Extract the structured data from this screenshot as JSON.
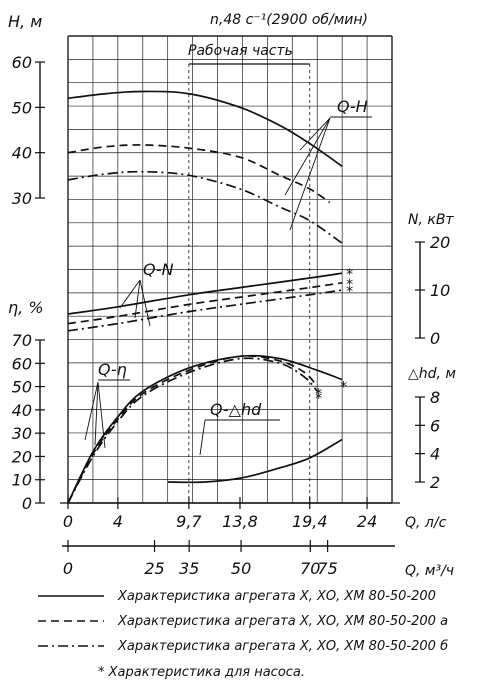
{
  "chart_data": {
    "type": "line",
    "title": "n,48 c⁻¹(2900 об/мин)",
    "working_range_label": "Рабочая часть",
    "x_axis": {
      "label": "Q, л/с",
      "ticks": [
        "0",
        "4",
        "9,7",
        "13,8",
        "19,4",
        "24"
      ],
      "tick_values": [
        0,
        4,
        9.7,
        13.8,
        19.4,
        24
      ],
      "range": [
        0,
        26
      ]
    },
    "x2_axis": {
      "label": "Q, м³/ч",
      "ticks": [
        "0",
        "25",
        "35",
        "50",
        "70",
        "75"
      ],
      "tick_values": [
        0,
        25,
        35,
        50,
        70,
        75
      ]
    },
    "panels": {
      "head": {
        "axis_label": "H, м",
        "ticks": [
          "60",
          "50",
          "40",
          "30"
        ],
        "tick_values": [
          60,
          50,
          40,
          30
        ],
        "curve_label": "Q-H"
      },
      "power": {
        "axis_label": "N, кВт",
        "ticks": [
          "20",
          "10",
          "0"
        ],
        "tick_values": [
          20,
          10,
          0
        ],
        "curve_label": "Q-N"
      },
      "efficiency": {
        "axis_label": "η, %",
        "ticks": [
          "70",
          "60",
          "50",
          "40",
          "30",
          "20",
          "10",
          "0"
        ],
        "tick_values": [
          70,
          60,
          50,
          40,
          30,
          20,
          10,
          0
        ],
        "curve_label": "Q-η"
      },
      "npsh": {
        "axis_label": "△hd, м",
        "ticks": [
          "8",
          "6",
          "4",
          "2"
        ],
        "tick_values": [
          8,
          6,
          4,
          2
        ],
        "curve_label": "Q-△hd"
      }
    },
    "series": [
      {
        "name": "Характеристика агрегата Х, ХО, ХМ 80-50-200",
        "style": "solid",
        "head": [
          [
            0,
            52
          ],
          [
            3,
            53
          ],
          [
            6,
            53.5
          ],
          [
            9.7,
            53
          ],
          [
            13.8,
            50
          ],
          [
            17,
            46
          ],
          [
            19.4,
            42
          ],
          [
            22,
            37
          ]
        ],
        "power": [
          [
            0,
            5
          ],
          [
            4,
            6.5
          ],
          [
            9.7,
            9
          ],
          [
            13.8,
            10.5
          ],
          [
            19.4,
            12.5
          ],
          [
            22,
            13.5
          ]
        ],
        "efficiency": [
          [
            0,
            0
          ],
          [
            2,
            22
          ],
          [
            4,
            37
          ],
          [
            6,
            48
          ],
          [
            9.7,
            58
          ],
          [
            13.8,
            63
          ],
          [
            17,
            62
          ],
          [
            20,
            57
          ],
          [
            22,
            53
          ]
        ]
      },
      {
        "name": "Характеристика агрегата Х, ХО, ХМ 80-50-200 а",
        "style": "dashed",
        "head": [
          [
            0,
            40
          ],
          [
            3,
            41.3
          ],
          [
            6,
            41.7
          ],
          [
            9.7,
            41
          ],
          [
            13.8,
            39
          ],
          [
            17,
            35
          ],
          [
            19.4,
            32
          ],
          [
            21,
            29
          ]
        ],
        "power": [
          [
            0,
            3
          ],
          [
            4,
            4.5
          ],
          [
            9.7,
            7
          ],
          [
            13.8,
            8.5
          ],
          [
            19.4,
            10.5
          ],
          [
            22,
            11.5
          ]
        ],
        "efficiency": [
          [
            0,
            0
          ],
          [
            2,
            21
          ],
          [
            4,
            36
          ],
          [
            6,
            47
          ],
          [
            9.7,
            57
          ],
          [
            13.8,
            63
          ],
          [
            17,
            61
          ],
          [
            19,
            56
          ],
          [
            20,
            50
          ]
        ]
      },
      {
        "name": "Характеристика агрегата Х, ХО, ХМ 80-50-200 б",
        "style": "dashdot",
        "head": [
          [
            0,
            34
          ],
          [
            3,
            35.3
          ],
          [
            6,
            35.8
          ],
          [
            9.7,
            35
          ],
          [
            13.8,
            32
          ],
          [
            17,
            28
          ],
          [
            19.4,
            25
          ],
          [
            22,
            20
          ]
        ],
        "power": [
          [
            0,
            1.5
          ],
          [
            4,
            3
          ],
          [
            9.7,
            5.5
          ],
          [
            13.8,
            7
          ],
          [
            19.4,
            9
          ],
          [
            22,
            10
          ]
        ],
        "efficiency": [
          [
            0,
            0
          ],
          [
            2,
            20
          ],
          [
            4,
            35
          ],
          [
            6,
            46
          ],
          [
            9.7,
            56
          ],
          [
            13.8,
            62
          ],
          [
            17,
            60
          ],
          [
            19,
            54
          ],
          [
            20,
            48
          ]
        ]
      },
      {
        "name": "Q-△hd",
        "style": "solid",
        "npsh": [
          [
            8,
            2
          ],
          [
            11,
            2
          ],
          [
            14,
            2.3
          ],
          [
            17,
            3
          ],
          [
            19.4,
            3.7
          ],
          [
            22,
            5
          ]
        ]
      }
    ],
    "footnote_marker": "*",
    "legend": {
      "solid": "Характеристика агрегата Х, ХО, ХМ 80-50-200",
      "dashed": "Характеристика агрегата Х, ХО, ХМ 80-50-200 а",
      "dashdot": "Характеристика агрегата Х, ХО, ХМ 80-50-200 б",
      "note": "* Характеристика для насоса."
    },
    "grid": true
  }
}
